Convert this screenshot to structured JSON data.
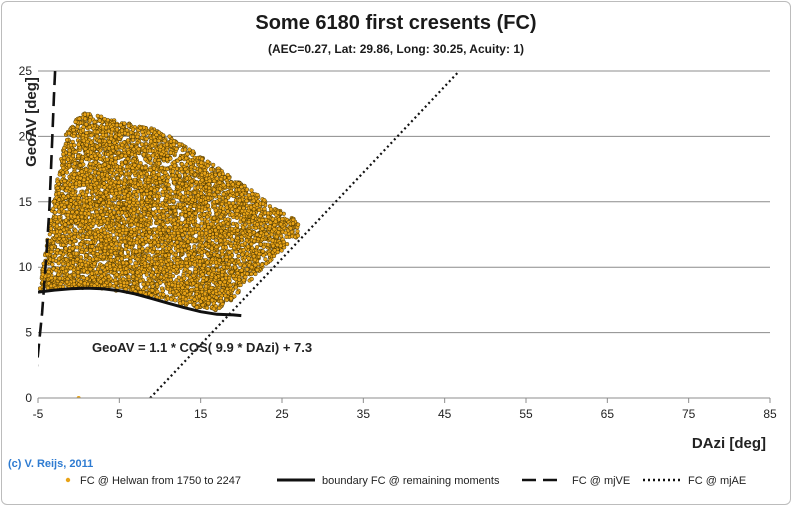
{
  "chart_data": {
    "type": "scatter",
    "title": "Some 6180 first cresents (FC)",
    "subtitle": "(AEC=0.27, Lat: 29.86, Long: 30.25, Acuity: 1)",
    "xlabel": "DAzi [deg]",
    "ylabel": "GeoAV [deg]",
    "xlim": [
      -5,
      85
    ],
    "ylim": [
      0,
      25
    ],
    "xticks": [
      "-5",
      "5",
      "15",
      "25",
      "35",
      "45",
      "55",
      "65",
      "75",
      "85"
    ],
    "yticks": [
      "0",
      "5",
      "10",
      "15",
      "20",
      "25"
    ],
    "grid": true,
    "annotation": "GeoAV = 1.1 * COS( 9.9 * DAzi) + 7.3",
    "copyright": "(c) V. Reijs, 2011",
    "series": [
      {
        "name": "FC @ Helwan from 1750 to 2247",
        "kind": "points",
        "color": "#e8a317",
        "count": 6180,
        "cloud_outline": [
          [
            -4.8,
            8.4
          ],
          [
            -3.7,
            13.0
          ],
          [
            -1.5,
            20.5
          ],
          [
            0.5,
            21.8
          ],
          [
            3.0,
            21.5
          ],
          [
            6.0,
            21.0
          ],
          [
            9.0,
            20.6
          ],
          [
            12.0,
            19.8
          ],
          [
            15.0,
            18.5
          ],
          [
            18.0,
            17.2
          ],
          [
            21.0,
            16.0
          ],
          [
            24.0,
            14.6
          ],
          [
            27.0,
            13.5
          ],
          [
            27.0,
            12.4
          ],
          [
            23.0,
            10.2
          ],
          [
            19.0,
            7.6
          ],
          [
            17.0,
            6.6
          ],
          [
            14.0,
            7.0
          ],
          [
            10.0,
            7.6
          ],
          [
            6.0,
            8.1
          ],
          [
            2.0,
            8.4
          ],
          [
            -2.0,
            8.4
          ],
          [
            -4.8,
            8.3
          ]
        ]
      },
      {
        "name": "boundary FC @ remaining moments",
        "kind": "line",
        "style": "solid",
        "color": "#111111",
        "x": [
          -5,
          -3,
          -1,
          1,
          3,
          5,
          7,
          9,
          11,
          13,
          15,
          17,
          19,
          20
        ],
        "y": [
          8.1,
          8.25,
          8.35,
          8.4,
          8.35,
          8.2,
          7.95,
          7.6,
          7.25,
          6.9,
          6.6,
          6.4,
          6.35,
          6.3
        ]
      },
      {
        "name": "FC @ mjVE",
        "kind": "line",
        "style": "dashed",
        "color": "#111111",
        "x": [
          -5.3,
          -4.9,
          -4.5,
          -4.2,
          -3.9,
          -3.6,
          -3.4,
          -3.2,
          -3.05,
          -2.9
        ],
        "y": [
          1.5,
          4.0,
          6.5,
          9.0,
          11.5,
          14.5,
          17.5,
          20.5,
          23.0,
          25.0
        ]
      },
      {
        "name": "FC @ mjAE",
        "kind": "line",
        "style": "dotted",
        "color": "#111111",
        "x": [
          8.8,
          46.8
        ],
        "y": [
          0,
          25
        ]
      }
    ]
  }
}
